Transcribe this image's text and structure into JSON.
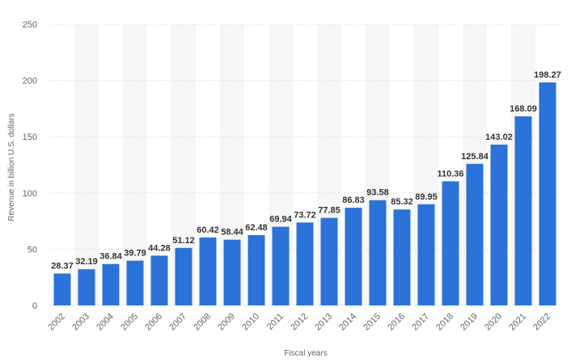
{
  "chart_data": {
    "type": "bar",
    "title": "",
    "xlabel": "Fiscal years",
    "ylabel": "Revenue in billion U.S. dollars",
    "categories": [
      "2002",
      "2003",
      "2004",
      "2005",
      "2006",
      "2007",
      "2008",
      "2009",
      "2010",
      "2011",
      "2012",
      "2013",
      "2014",
      "2015",
      "2016",
      "2017",
      "2018",
      "2019",
      "2020",
      "2021",
      "2022"
    ],
    "values": [
      28.37,
      32.19,
      36.84,
      39.79,
      44.28,
      51.12,
      60.42,
      58.44,
      62.48,
      69.94,
      73.72,
      77.85,
      86.83,
      93.58,
      85.32,
      89.95,
      110.36,
      125.84,
      143.02,
      168.09,
      198.27
    ],
    "data_labels": [
      "28.37",
      "32.19",
      "36.84",
      "39.79",
      "44.28",
      "51.12",
      "60.42",
      "58.44",
      "62.48",
      "69.94",
      "73.72",
      "77.85",
      "86.83",
      "93.58",
      "85.32",
      "89.95",
      "110.36",
      "125.84",
      "143.02",
      "168.09",
      "198.27"
    ],
    "ylim": [
      0,
      250
    ],
    "y_ticks": [
      0,
      50,
      100,
      150,
      200,
      250
    ],
    "y_tick_labels": [
      "0",
      "50",
      "100",
      "150",
      "200",
      "250"
    ],
    "grid": true,
    "grid_style": "dotted",
    "alternating_column_bands": true,
    "x_tick_rotation": "45deg",
    "colors": {
      "bar": "#2b72d9",
      "band": "#f6f6f6",
      "grid": "#cccccc",
      "text": "#666666",
      "data_label": "#333333"
    }
  }
}
